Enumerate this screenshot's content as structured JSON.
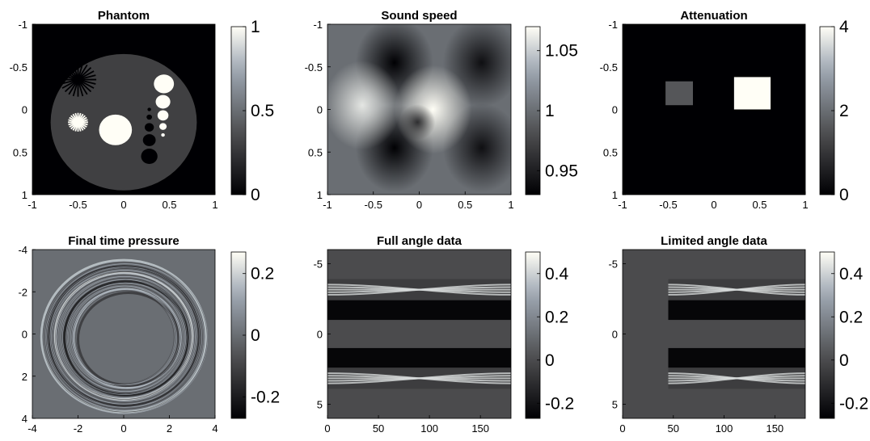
{
  "chart_data": [
    {
      "type": "heatmap",
      "title": "Phantom",
      "xticks": [
        "-1",
        "-0.5",
        "0",
        "0.5",
        "1"
      ],
      "yticks": [
        "-1",
        "-0.5",
        "0",
        "0.5",
        "1"
      ],
      "xlim": [
        -1,
        1
      ],
      "ylim": [
        -1,
        1
      ],
      "y_reversed": true,
      "colorbar": {
        "ticks": [
          "0",
          "0.5",
          "1"
        ],
        "range": [
          0,
          1
        ]
      },
      "content": {
        "background": 0,
        "disk": {
          "center": [
            0,
            0.15
          ],
          "radius": 0.8,
          "value": 0.3
        },
        "features": [
          {
            "kind": "star",
            "value": 0,
            "center": [
              -0.5,
              -0.35
            ],
            "radius": 0.2,
            "spokes": 12
          },
          {
            "kind": "star",
            "value": 1,
            "center": [
              -0.5,
              0.15
            ],
            "radius": 0.11,
            "spokes": 12
          },
          {
            "kind": "circle",
            "value": 1,
            "center": [
              -0.09,
              0.24
            ],
            "radius": 0.18
          },
          {
            "kind": "circle",
            "value": 1,
            "center": [
              0.44,
              -0.3
            ],
            "radius": 0.11
          },
          {
            "kind": "circle",
            "value": 1,
            "center": [
              0.43,
              -0.09
            ],
            "radius": 0.08
          },
          {
            "kind": "circle",
            "value": 1,
            "center": [
              0.43,
              0.07
            ],
            "radius": 0.06
          },
          {
            "kind": "circle",
            "value": 1,
            "center": [
              0.43,
              0.2
            ],
            "radius": 0.04
          },
          {
            "kind": "circle",
            "value": 1,
            "center": [
              0.43,
              0.3
            ],
            "radius": 0.02
          },
          {
            "kind": "circle",
            "value": 0,
            "center": [
              0.28,
              0.55
            ],
            "radius": 0.09
          },
          {
            "kind": "circle",
            "value": 0,
            "center": [
              0.28,
              0.36
            ],
            "radius": 0.07
          },
          {
            "kind": "circle",
            "value": 0,
            "center": [
              0.28,
              0.21
            ],
            "radius": 0.05
          },
          {
            "kind": "circle",
            "value": 0,
            "center": [
              0.28,
              0.09
            ],
            "radius": 0.03
          },
          {
            "kind": "circle",
            "value": 0,
            "center": [
              0.28,
              0.0
            ],
            "radius": 0.02
          }
        ]
      }
    },
    {
      "type": "heatmap",
      "title": "Sound speed",
      "xticks": [
        "-1",
        "-0.5",
        "0",
        "0.5",
        "1"
      ],
      "yticks": [
        "-1",
        "-0.5",
        "0",
        "0.5",
        "1"
      ],
      "xlim": [
        -1,
        1
      ],
      "ylim": [
        -1,
        1
      ],
      "y_reversed": true,
      "colorbar": {
        "ticks": [
          "0.95",
          "1",
          "1.05"
        ],
        "range": [
          0.93,
          1.07
        ]
      },
      "content": {
        "background": 1.0,
        "blobs": [
          {
            "center": [
              -0.27,
              -0.55
            ],
            "value": 0.93
          },
          {
            "center": [
              -0.27,
              0.45
            ],
            "value": 0.93
          },
          {
            "center": [
              0.68,
              -0.55
            ],
            "value": 0.94
          },
          {
            "center": [
              0.68,
              0.45
            ],
            "value": 0.94
          },
          {
            "center": [
              0.15,
              0.0
            ],
            "value": 1.07
          },
          {
            "center": [
              -0.62,
              -0.05
            ],
            "value": 1.06
          },
          {
            "center": [
              -0.02,
              0.15
            ],
            "value": 0.96
          }
        ]
      }
    },
    {
      "type": "heatmap",
      "title": "Attenuation",
      "xticks": [
        "-1",
        "-0.5",
        "0",
        "0.5",
        "1"
      ],
      "yticks": [
        "-1",
        "-0.5",
        "0",
        "0.5",
        "1"
      ],
      "xlim": [
        -1,
        1
      ],
      "ylim": [
        -1,
        1
      ],
      "y_reversed": true,
      "colorbar": {
        "ticks": [
          "0",
          "2",
          "4"
        ],
        "range": [
          0,
          4
        ]
      },
      "content": {
        "background": 0,
        "rects": [
          {
            "x": [
              -0.53,
              -0.23
            ],
            "y": [
              -0.33,
              -0.05
            ],
            "value": 1.6
          },
          {
            "x": [
              0.22,
              0.62
            ],
            "y": [
              -0.38,
              0.0
            ],
            "value": 4
          }
        ]
      }
    },
    {
      "type": "heatmap",
      "title": "Final time pressure",
      "xticks": [
        "-4",
        "-2",
        "0",
        "2",
        "4"
      ],
      "yticks": [
        "-4",
        "-2",
        "0",
        "2",
        "4"
      ],
      "xlim": [
        -4,
        4
      ],
      "ylim": [
        -4,
        4
      ],
      "y_reversed": true,
      "colorbar": {
        "ticks": [
          "-0.2",
          "0",
          "0.2"
        ],
        "range": [
          -0.27,
          0.27
        ]
      },
      "content": {
        "background": 0,
        "rings": [
          {
            "center": [
              0,
              0.1
            ],
            "radius": 3.6,
            "value": 0.18
          },
          {
            "center": [
              0,
              0.1
            ],
            "radius": 3.3,
            "value": -0.15
          },
          {
            "center": [
              0,
              0.1
            ],
            "radius": 3.0,
            "value": 0.2
          },
          {
            "center": [
              0.1,
              0.2
            ],
            "radius": 2.7,
            "value": -0.2
          },
          {
            "center": [
              0.15,
              0.2
            ],
            "radius": 2.35,
            "value": 0.16
          },
          {
            "center": [
              0.2,
              0.25
            ],
            "radius": 2.2,
            "value": -0.12
          }
        ]
      }
    },
    {
      "type": "heatmap",
      "title": "Full angle data",
      "xticks": [
        "0",
        "50",
        "100",
        "150"
      ],
      "yticks": [
        "-5",
        "0",
        "5"
      ],
      "xlim": [
        0,
        180
      ],
      "ylim": [
        -6,
        6
      ],
      "y_reversed": true,
      "colorbar": {
        "ticks": [
          "-0.2",
          "0",
          "0.2",
          "0.4"
        ],
        "range": [
          -0.27,
          0.5
        ]
      },
      "content": {
        "x_start": 0,
        "background": 0,
        "bands": [
          {
            "y": [
              -3.9,
              -2.4
            ],
            "kind": "bright"
          },
          {
            "y": [
              -2.4,
              -1.0
            ],
            "kind": "dark"
          },
          {
            "y": [
              1.0,
              2.4
            ],
            "kind": "dark"
          },
          {
            "y": [
              2.4,
              3.9
            ],
            "kind": "bright"
          }
        ]
      }
    },
    {
      "type": "heatmap",
      "title": "Limited angle data",
      "xticks": [
        "0",
        "50",
        "100",
        "150"
      ],
      "yticks": [
        "-5",
        "0",
        "5"
      ],
      "xlim": [
        0,
        180
      ],
      "ylim": [
        -6,
        6
      ],
      "y_reversed": true,
      "colorbar": {
        "ticks": [
          "-0.2",
          "0",
          "0.2",
          "0.4"
        ],
        "range": [
          -0.27,
          0.5
        ]
      },
      "content": {
        "x_start": 45,
        "background": 0,
        "bands": [
          {
            "y": [
              -3.9,
              -2.4
            ],
            "kind": "bright"
          },
          {
            "y": [
              -2.4,
              -1.0
            ],
            "kind": "dark"
          },
          {
            "y": [
              1.0,
              2.4
            ],
            "kind": "dark"
          },
          {
            "y": [
              2.4,
              3.9
            ],
            "kind": "bright"
          }
        ]
      }
    }
  ]
}
